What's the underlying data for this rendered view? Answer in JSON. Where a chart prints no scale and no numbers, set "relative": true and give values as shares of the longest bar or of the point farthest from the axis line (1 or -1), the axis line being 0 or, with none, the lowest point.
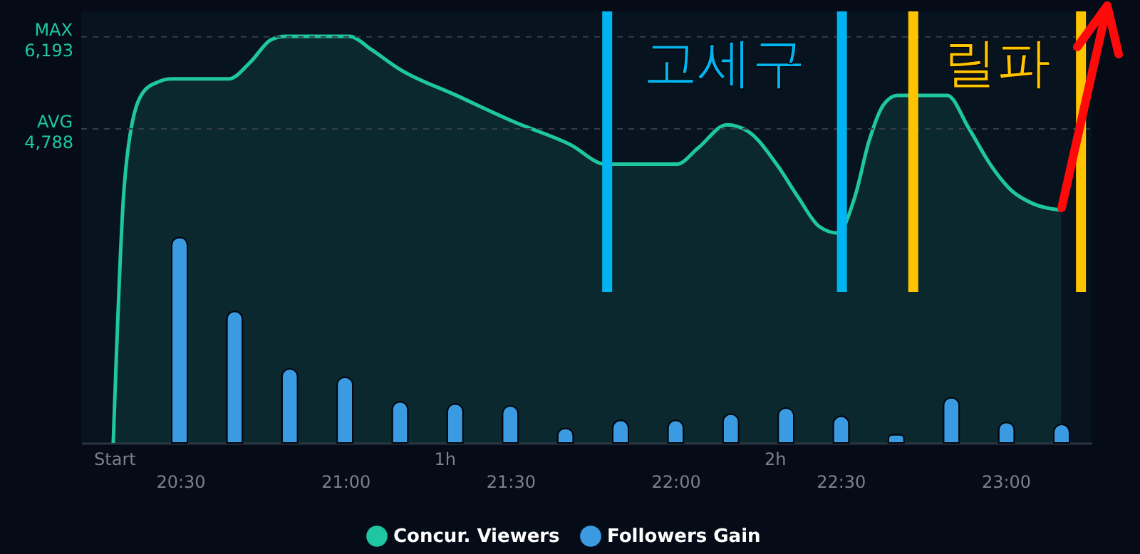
{
  "chart_data": [
    {
      "type": "area",
      "xlim": [
        20.2,
        23.26
      ],
      "xticks": [
        {
          "value": 20.5,
          "label": "20:30"
        },
        {
          "value": 21,
          "label": "21:00"
        },
        {
          "value": 21.5,
          "label": "21:30"
        },
        {
          "value": 22,
          "label": "22:00"
        },
        {
          "value": 22.5,
          "label": "22:30"
        },
        {
          "value": 23,
          "label": "23:00"
        }
      ],
      "x2lim": [
        -0.1,
        2.96
      ],
      "x2ticks": [
        {
          "value": 0,
          "label": "Start"
        },
        {
          "value": 1,
          "label": "1h"
        },
        {
          "value": 2,
          "label": "2h"
        }
      ],
      "ylim": [
        0,
        6580
      ],
      "yticks": [
        {
          "value": 4788,
          "label": "4,788"
        },
        {
          "value": 6193,
          "label": "6,193"
        }
      ],
      "legend": "bottom",
      "series": [
        {
          "name": "Concur. Viewers",
          "color": "#1fc7a0",
          "x": [
            20.297,
            20.328,
            20.345,
            20.388,
            20.431,
            20.474,
            20.647,
            20.711,
            20.776,
            20.819,
            21.013,
            21.078,
            21.164,
            21.336,
            21.509,
            21.681,
            21.789,
            21.853,
            22.004,
            22.069,
            22.155,
            22.22,
            22.306,
            22.371,
            22.435,
            22.491,
            22.543,
            22.586,
            22.629,
            22.672,
            22.823,
            22.888,
            22.953,
            23.017,
            23.082,
            23.168
          ],
          "values": [
            0,
            3750,
            4600,
            5350,
            5500,
            5550,
            5550,
            5800,
            6150,
            6200,
            6200,
            6000,
            5700,
            5300,
            4900,
            4550,
            4250,
            4250,
            4250,
            4500,
            4850,
            4750,
            4250,
            3750,
            3300,
            3200,
            3750,
            4600,
            5150,
            5300,
            5300,
            4800,
            4250,
            3850,
            3650,
            3550
          ]
        }
      ],
      "ref_lines": [
        {
          "axis": "y",
          "value": 6193,
          "label": "MAX",
          "line_style": "dashed"
        },
        {
          "axis": "y",
          "value": 4788,
          "label": "AVG",
          "line_style": "dashed"
        },
        {
          "axis": "x",
          "value": 21.793,
          "label": "고세구",
          "color": "#00b4f0"
        },
        {
          "axis": "x",
          "value": 22.504,
          "color": "#00b4f0"
        },
        {
          "axis": "x",
          "value": 22.72,
          "label": "릴파",
          "color": "#ffc400"
        },
        {
          "axis": "x",
          "value": 23.228,
          "color": "#ffc400"
        }
      ]
    },
    {
      "type": "bar",
      "relative": true,
      "legend": "bottom",
      "categories": [
        null,
        null,
        null,
        null,
        null,
        null,
        null,
        null,
        null,
        null,
        null,
        null,
        null,
        null,
        null,
        null,
        null
      ],
      "series": [
        {
          "name": "Followers Gain",
          "color": "#3a9be2",
          "values": [
            1,
            0.64,
            0.36,
            0.32,
            0.2,
            0.19,
            0.18,
            0.07,
            0.11,
            0.11,
            0.14,
            0.17,
            0.13,
            0.04,
            0.22,
            0.1,
            0.09
          ]
        }
      ]
    }
  ]
}
